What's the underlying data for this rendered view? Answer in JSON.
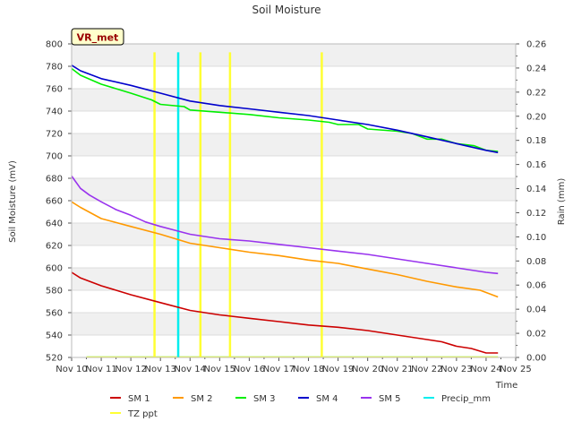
{
  "chart_data": {
    "type": "line",
    "title": "Soil Moisture",
    "site_label": "VR_met",
    "xlabel": "Time",
    "ylabel_left": "Soil Moisture (mV)",
    "ylabel_right": "Rain (mm)",
    "x_range_days": [
      10,
      25
    ],
    "x_ticks": [
      {
        "day": 10,
        "label": "Nov 10"
      },
      {
        "day": 11,
        "label": "Nov 11"
      },
      {
        "day": 12,
        "label": "Nov 12"
      },
      {
        "day": 13,
        "label": "Nov 13"
      },
      {
        "day": 14,
        "label": "Nov 14"
      },
      {
        "day": 15,
        "label": "Nov 15"
      },
      {
        "day": 16,
        "label": "Nov 16"
      },
      {
        "day": 17,
        "label": "Nov 17"
      },
      {
        "day": 18,
        "label": "Nov 18"
      },
      {
        "day": 19,
        "label": "Nov 19"
      },
      {
        "day": 20,
        "label": "Nov 20"
      },
      {
        "day": 21,
        "label": "Nov 21"
      },
      {
        "day": 22,
        "label": "Nov 22"
      },
      {
        "day": 23,
        "label": "Nov 23"
      },
      {
        "day": 24,
        "label": "Nov 24"
      },
      {
        "day": 25,
        "label": "Nov 25"
      }
    ],
    "ylim_left": [
      520,
      800
    ],
    "y_ticks_left": [
      520,
      540,
      560,
      580,
      600,
      620,
      640,
      660,
      680,
      700,
      720,
      740,
      760,
      780,
      800
    ],
    "ylim_right": [
      0,
      0.26
    ],
    "y_ticks_right": [
      {
        "v": 0.0,
        "label": "0.00"
      },
      {
        "v": 0.02,
        "label": "0.02"
      },
      {
        "v": 0.04,
        "label": "0.04"
      },
      {
        "v": 0.06,
        "label": "0.06"
      },
      {
        "v": 0.08,
        "label": "0.08"
      },
      {
        "v": 0.1,
        "label": "0.10"
      },
      {
        "v": 0.12,
        "label": "0.12"
      },
      {
        "v": 0.14,
        "label": "0.14"
      },
      {
        "v": 0.16,
        "label": "0.16"
      },
      {
        "v": 0.18,
        "label": "0.18"
      },
      {
        "v": 0.2,
        "label": "0.20"
      },
      {
        "v": 0.22,
        "label": "0.22"
      },
      {
        "v": 0.24,
        "label": "0.24"
      },
      {
        "v": 0.26,
        "label": "0.26"
      }
    ],
    "series": [
      {
        "name": "SM 1",
        "axis": "left",
        "color": "#cc0000",
        "x": [
          10.0,
          10.3,
          11.0,
          12.0,
          13.0,
          14.0,
          15.0,
          16.0,
          17.0,
          18.0,
          19.0,
          20.0,
          21.0,
          22.0,
          22.5,
          23.0,
          23.5,
          24.0,
          24.4
        ],
        "y": [
          596,
          591,
          584,
          576,
          569,
          562,
          558,
          555,
          552,
          549,
          547,
          544,
          540,
          536,
          534,
          530,
          528,
          524,
          524
        ]
      },
      {
        "name": "SM 2",
        "axis": "left",
        "color": "#ff9900",
        "x": [
          10.0,
          10.3,
          11.0,
          12.0,
          13.0,
          14.0,
          15.0,
          16.0,
          17.0,
          18.0,
          19.0,
          20.0,
          21.0,
          22.0,
          23.0,
          23.8,
          24.4
        ],
        "y": [
          659,
          654,
          644,
          637,
          630,
          622,
          618,
          614,
          611,
          607,
          604,
          599,
          594,
          588,
          583,
          580,
          574
        ]
      },
      {
        "name": "SM 3",
        "axis": "left",
        "color": "#00ee00",
        "x": [
          10.0,
          10.3,
          11.0,
          12.0,
          12.7,
          13.0,
          13.8,
          14.0,
          15.0,
          16.0,
          17.0,
          18.0,
          18.7,
          19.0,
          19.7,
          20.0,
          21.0,
          21.5,
          22.0,
          22.5,
          23.0,
          23.6,
          24.0,
          24.4
        ],
        "y": [
          778,
          772,
          764,
          756,
          750,
          746,
          744,
          741,
          739,
          737,
          734,
          732,
          730,
          728,
          728,
          724,
          722,
          720,
          715,
          715,
          711,
          709,
          705,
          704
        ]
      },
      {
        "name": "SM 4",
        "axis": "left",
        "color": "#0000cc",
        "x": [
          10.0,
          10.3,
          11.0,
          12.0,
          13.0,
          14.0,
          15.0,
          16.0,
          17.0,
          18.0,
          19.0,
          20.0,
          21.0,
          22.0,
          23.0,
          24.0,
          24.4
        ],
        "y": [
          781,
          776,
          769,
          763,
          756,
          749,
          745,
          742,
          739,
          736,
          732,
          728,
          723,
          717,
          711,
          705,
          703
        ]
      },
      {
        "name": "SM 5",
        "axis": "left",
        "color": "#9933ee",
        "x": [
          10.0,
          10.3,
          10.6,
          11.0,
          11.5,
          12.0,
          12.5,
          13.0,
          14.0,
          15.0,
          16.0,
          17.0,
          18.0,
          19.0,
          20.0,
          21.0,
          22.0,
          23.0,
          24.0,
          24.4
        ],
        "y": [
          682,
          671,
          665,
          659,
          652,
          647,
          641,
          637,
          630,
          626,
          624,
          621,
          618,
          615,
          612,
          608,
          604,
          600,
          596,
          595
        ]
      },
      {
        "name": "Precip_mm",
        "axis": "right",
        "color": "#00eeee",
        "type": "bar",
        "x": [
          13.6
        ],
        "y": [
          0.253
        ]
      },
      {
        "name": "TZ ppt",
        "axis": "right",
        "color": "#ffff33",
        "type": "bar",
        "x": [
          12.8,
          14.35,
          15.35,
          18.45
        ],
        "y": [
          0.253,
          0.253,
          0.253,
          0.253
        ]
      }
    ]
  }
}
